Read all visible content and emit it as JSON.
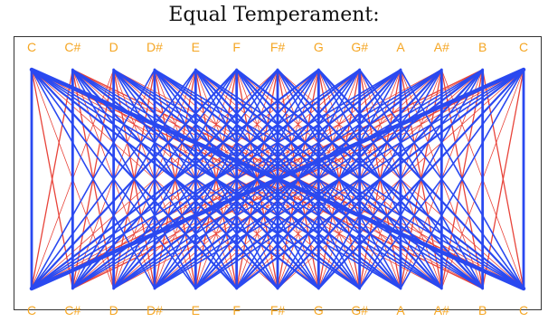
{
  "title": "Equal Temperament:",
  "notes": [
    "C",
    "C#",
    "D",
    "D#",
    "E",
    "F",
    "F#",
    "G",
    "G#",
    "A",
    "A#",
    "B",
    "C"
  ],
  "colors": {
    "label": "#f5a623",
    "frame": "#333333",
    "consonant_line": "#2a49f0",
    "dissonant_line": "#e8443a"
  }
}
